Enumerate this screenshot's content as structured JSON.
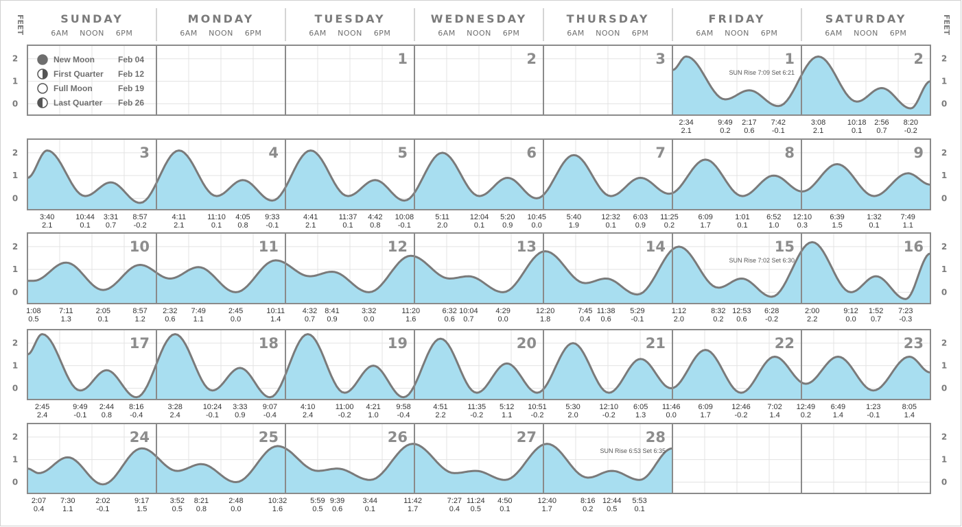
{
  "axis": {
    "feet_label": "FEET",
    "y_ticks": [
      "2",
      "1",
      "0"
    ],
    "ylim": [
      -0.5,
      2.6
    ]
  },
  "days": [
    "SUNDAY",
    "MONDAY",
    "TUESDAY",
    "WEDNESDAY",
    "THURSDAY",
    "FRIDAY",
    "SATURDAY"
  ],
  "time_ticks": [
    "6AM",
    "NOON",
    "6PM"
  ],
  "moon_phases": [
    {
      "name": "New Moon",
      "date": "Feb 04",
      "icon": "new-moon-icon"
    },
    {
      "name": "First Quarter",
      "date": "Feb 12",
      "icon": "first-quarter-icon"
    },
    {
      "name": "Full Moon",
      "date": "Feb 19",
      "icon": "full-moon-icon"
    },
    {
      "name": "Last Quarter",
      "date": "Feb 26",
      "icon": "last-quarter-icon"
    }
  ],
  "colors": {
    "fill": "#a8def0",
    "curve": "#7a7a7a",
    "border": "#8a8a8a",
    "grid": "#e3e3e3"
  },
  "chart_data": {
    "type": "area",
    "title": "",
    "weeks": [
      {
        "cells": [
          {
            "label": "",
            "moon_box": true
          },
          {
            "label": ""
          },
          {
            "label": "1",
            "empty": true
          },
          {
            "label": "2",
            "empty": true
          },
          {
            "label": "3",
            "empty": true
          },
          {
            "label": "1",
            "sun": "SUN Rise 7:09  Set 6:21"
          },
          {
            "label": "2"
          }
        ]
      },
      {
        "cells": [
          {
            "label": "3"
          },
          {
            "label": "4"
          },
          {
            "label": "5"
          },
          {
            "label": "6"
          },
          {
            "label": "7"
          },
          {
            "label": "8"
          },
          {
            "label": "9"
          }
        ]
      },
      {
        "cells": [
          {
            "label": "10"
          },
          {
            "label": "11"
          },
          {
            "label": "12"
          },
          {
            "label": "13"
          },
          {
            "label": "14"
          },
          {
            "label": "15",
            "sun": "SUN Rise 7:02  Set 6:30"
          },
          {
            "label": "16"
          }
        ]
      },
      {
        "cells": [
          {
            "label": "17"
          },
          {
            "label": "18"
          },
          {
            "label": "19"
          },
          {
            "label": "20"
          },
          {
            "label": "21"
          },
          {
            "label": "22"
          },
          {
            "label": "23"
          }
        ]
      },
      {
        "cells": [
          {
            "label": "24"
          },
          {
            "label": "25"
          },
          {
            "label": "26"
          },
          {
            "label": "27"
          },
          {
            "label": "28",
            "sun": "SUN Rise 6:53  Set 6:35"
          },
          {
            "label": "",
            "empty": true
          },
          {
            "label": "",
            "empty": true
          }
        ]
      }
    ],
    "tides": [
      {
        "week": 0,
        "start_day": 5,
        "end_day": 7,
        "y_start": 1.5,
        "y_end": 1.0,
        "events": [
          {
            "d": 5,
            "t": "2:34",
            "v": 2.1
          },
          {
            "d": 5,
            "t": "9:49",
            "v": 0.2
          },
          {
            "d": 5,
            "t": "2:17",
            "v": 0.6
          },
          {
            "d": 5,
            "t": "7:42",
            "v": -0.1
          },
          {
            "d": 6,
            "t": "3:08",
            "v": 2.1
          },
          {
            "d": 6,
            "t": "10:18",
            "v": 0.1
          },
          {
            "d": 6,
            "t": "2:56",
            "v": 0.7
          },
          {
            "d": 6,
            "t": "8:20",
            "v": -0.2
          }
        ]
      },
      {
        "week": 1,
        "start_day": 0,
        "end_day": 7,
        "y_start": 0.9,
        "y_end": 0.6,
        "events": [
          {
            "d": 0,
            "t": "3:40",
            "v": 2.1
          },
          {
            "d": 0,
            "t": "10:44",
            "v": 0.1
          },
          {
            "d": 0,
            "t": "3:31",
            "v": 0.7
          },
          {
            "d": 0,
            "t": "8:57",
            "v": -0.2
          },
          {
            "d": 1,
            "t": "4:11",
            "v": 2.1
          },
          {
            "d": 1,
            "t": "11:10",
            "v": 0.1
          },
          {
            "d": 1,
            "t": "4:05",
            "v": 0.8
          },
          {
            "d": 1,
            "t": "9:33",
            "v": -0.1
          },
          {
            "d": 2,
            "t": "4:41",
            "v": 2.1
          },
          {
            "d": 2,
            "t": "11:37",
            "v": 0.1
          },
          {
            "d": 2,
            "t": "4:42",
            "v": 0.8
          },
          {
            "d": 2,
            "t": "10:08",
            "v": -0.1
          },
          {
            "d": 3,
            "t": "5:11",
            "v": 2.0
          },
          {
            "d": 3,
            "t": "12:04",
            "v": 0.1
          },
          {
            "d": 3,
            "t": "5:20",
            "v": 0.9
          },
          {
            "d": 3,
            "t": "10:45",
            "v": 0.0
          },
          {
            "d": 4,
            "t": "5:40",
            "v": 1.9
          },
          {
            "d": 4,
            "t": "12:32",
            "v": 0.1
          },
          {
            "d": 4,
            "t": "6:03",
            "v": 0.9
          },
          {
            "d": 4,
            "t": "11:25",
            "v": 0.2
          },
          {
            "d": 5,
            "t": "6:09",
            "v": 1.7
          },
          {
            "d": 5,
            "t": "1:01",
            "v": 0.1
          },
          {
            "d": 5,
            "t": "6:52",
            "v": 1.0
          },
          {
            "d": 6,
            "t": "12:10",
            "v": 0.3
          },
          {
            "d": 6,
            "t": "6:39",
            "v": 1.5
          },
          {
            "d": 6,
            "t": "1:32",
            "v": 0.1
          },
          {
            "d": 6,
            "t": "7:49",
            "v": 1.1
          }
        ]
      },
      {
        "week": 2,
        "start_day": 0,
        "end_day": 7,
        "y_start": 0.5,
        "y_end": 1.7,
        "events": [
          {
            "d": 0,
            "t": "1:08",
            "v": 0.5
          },
          {
            "d": 0,
            "t": "7:11",
            "v": 1.3
          },
          {
            "d": 0,
            "t": "2:05",
            "v": 0.1
          },
          {
            "d": 0,
            "t": "8:57",
            "v": 1.2
          },
          {
            "d": 1,
            "t": "2:32",
            "v": 0.6
          },
          {
            "d": 1,
            "t": "7:49",
            "v": 1.1
          },
          {
            "d": 1,
            "t": "2:45",
            "v": 0.0
          },
          {
            "d": 1,
            "t": "10:11",
            "v": 1.4
          },
          {
            "d": 2,
            "t": "4:32",
            "v": 0.7
          },
          {
            "d": 2,
            "t": "8:41",
            "v": 0.9
          },
          {
            "d": 2,
            "t": "3:32",
            "v": 0.0
          },
          {
            "d": 2,
            "t": "11:20",
            "v": 1.6
          },
          {
            "d": 3,
            "t": "6:32",
            "v": 0.6
          },
          {
            "d": 3,
            "t": "10:04",
            "v": 0.7
          },
          {
            "d": 3,
            "t": "4:29",
            "v": 0.0
          },
          {
            "d": 4,
            "t": "12:20",
            "v": 1.8
          },
          {
            "d": 4,
            "t": "7:45",
            "v": 0.4
          },
          {
            "d": 4,
            "t": "11:38",
            "v": 0.6
          },
          {
            "d": 4,
            "t": "5:29",
            "v": -0.1
          },
          {
            "d": 5,
            "t": "1:12",
            "v": 2.0
          },
          {
            "d": 5,
            "t": "8:32",
            "v": 0.2
          },
          {
            "d": 5,
            "t": "12:53",
            "v": 0.6
          },
          {
            "d": 5,
            "t": "6:28",
            "v": -0.2
          },
          {
            "d": 6,
            "t": "2:00",
            "v": 2.2
          },
          {
            "d": 6,
            "t": "9:12",
            "v": 0.0
          },
          {
            "d": 6,
            "t": "1:52",
            "v": 0.7
          },
          {
            "d": 6,
            "t": "7:23",
            "v": -0.3
          }
        ]
      },
      {
        "week": 3,
        "start_day": 0,
        "end_day": 7,
        "y_start": 1.5,
        "y_end": 0.7,
        "events": [
          {
            "d": 0,
            "t": "2:45",
            "v": 2.4
          },
          {
            "d": 0,
            "t": "9:49",
            "v": -0.1
          },
          {
            "d": 0,
            "t": "2:44",
            "v": 0.8
          },
          {
            "d": 0,
            "t": "8:16",
            "v": -0.4
          },
          {
            "d": 1,
            "t": "3:28",
            "v": 2.4
          },
          {
            "d": 1,
            "t": "10:24",
            "v": -0.1
          },
          {
            "d": 1,
            "t": "3:33",
            "v": 0.9
          },
          {
            "d": 1,
            "t": "9:07",
            "v": -0.4
          },
          {
            "d": 2,
            "t": "4:10",
            "v": 2.4
          },
          {
            "d": 2,
            "t": "11:00",
            "v": -0.2
          },
          {
            "d": 2,
            "t": "4:21",
            "v": 1.0
          },
          {
            "d": 2,
            "t": "9:58",
            "v": -0.4
          },
          {
            "d": 3,
            "t": "4:51",
            "v": 2.2
          },
          {
            "d": 3,
            "t": "11:35",
            "v": -0.2
          },
          {
            "d": 3,
            "t": "5:12",
            "v": 1.1
          },
          {
            "d": 3,
            "t": "10:51",
            "v": -0.2
          },
          {
            "d": 4,
            "t": "5:30",
            "v": 2.0
          },
          {
            "d": 4,
            "t": "12:10",
            "v": -0.2
          },
          {
            "d": 4,
            "t": "6:05",
            "v": 1.3
          },
          {
            "d": 4,
            "t": "11:46",
            "v": 0.0
          },
          {
            "d": 5,
            "t": "6:09",
            "v": 1.7
          },
          {
            "d": 5,
            "t": "12:46",
            "v": -0.2
          },
          {
            "d": 5,
            "t": "7:02",
            "v": 1.4
          },
          {
            "d": 6,
            "t": "12:49",
            "v": 0.2
          },
          {
            "d": 6,
            "t": "6:49",
            "v": 1.4
          },
          {
            "d": 6,
            "t": "1:23",
            "v": -0.1
          },
          {
            "d": 6,
            "t": "8:05",
            "v": 1.4
          }
        ]
      },
      {
        "week": 4,
        "start_day": 0,
        "end_day": 5,
        "y_start": 0.6,
        "y_end": 1.5,
        "events": [
          {
            "d": 0,
            "t": "2:07",
            "v": 0.4
          },
          {
            "d": 0,
            "t": "7:30",
            "v": 1.1
          },
          {
            "d": 0,
            "t": "2:02",
            "v": -0.1
          },
          {
            "d": 0,
            "t": "9:17",
            "v": 1.5
          },
          {
            "d": 1,
            "t": "3:52",
            "v": 0.5
          },
          {
            "d": 1,
            "t": "8:21",
            "v": 0.8
          },
          {
            "d": 1,
            "t": "2:48",
            "v": 0.0
          },
          {
            "d": 1,
            "t": "10:32",
            "v": 1.6
          },
          {
            "d": 2,
            "t": "5:59",
            "v": 0.5
          },
          {
            "d": 2,
            "t": "9:39",
            "v": 0.6
          },
          {
            "d": 2,
            "t": "3:44",
            "v": 0.1
          },
          {
            "d": 2,
            "t": "11:42",
            "v": 1.7
          },
          {
            "d": 3,
            "t": "7:27",
            "v": 0.4
          },
          {
            "d": 3,
            "t": "11:24",
            "v": 0.5
          },
          {
            "d": 3,
            "t": "4:50",
            "v": 0.1
          },
          {
            "d": 4,
            "t": "12:40",
            "v": 1.7
          },
          {
            "d": 4,
            "t": "8:16",
            "v": 0.2
          },
          {
            "d": 4,
            "t": "12:44",
            "v": 0.5
          },
          {
            "d": 4,
            "t": "5:53",
            "v": 0.1
          }
        ]
      }
    ]
  }
}
